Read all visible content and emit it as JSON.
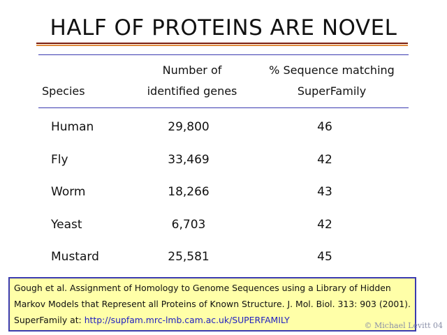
{
  "title": "HALF OF PROTEINS ARE NOVEL",
  "table": {
    "header": [
      [
        "Species"
      ],
      [
        "Number of",
        "identified genes"
      ],
      [
        "% Sequence matching",
        "SuperFamily"
      ]
    ],
    "rows": [
      [
        "Human",
        "29,800",
        "46"
      ],
      [
        "Fly",
        "33,469",
        "42"
      ],
      [
        "Worm",
        "18,266",
        "43"
      ],
      [
        "Yeast",
        "6,703",
        "42"
      ],
      [
        "Mustard",
        "25,581",
        "45"
      ]
    ]
  },
  "citation": {
    "text": "Gough et al.  Assignment of Homology to Genome Sequences using a Library of Hidden Markov Models that Represent all Proteins of Known Structure. J. Mol. Biol. 313: 903 (2001).  SuperFamily at:",
    "url": "http://supfam.mrc-lmb.cam.ac.uk/SUPERFAMILY"
  },
  "credit": "© Michael Levitt 04"
}
